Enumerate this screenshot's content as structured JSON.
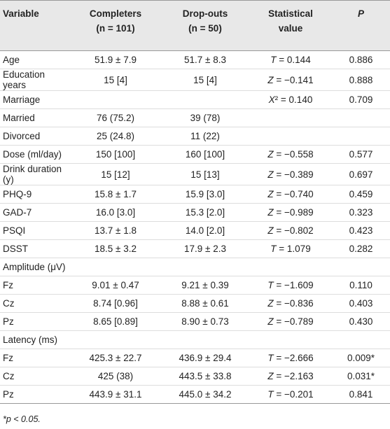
{
  "table": {
    "header": [
      "Variable",
      [
        "Completers",
        "(n = 101)"
      ],
      [
        "Drop-outs",
        "(n = 50)"
      ],
      [
        "Statistical",
        "value"
      ],
      "P"
    ],
    "rows": [
      [
        "Age",
        "51.9 ± 7.9",
        "51.7 ± 8.3",
        "T = 0.144",
        "0.886"
      ],
      [
        "Education years",
        "15 [4]",
        "15 [4]",
        "Z = −0.141",
        "0.888"
      ],
      [
        "Marriage",
        null,
        null,
        "X² = 0.140",
        "0.709"
      ],
      [
        "Married",
        "76 (75.2)",
        "39 (78)",
        null,
        null
      ],
      [
        "Divorced",
        "25 (24.8)",
        "11 (22)",
        null,
        null
      ],
      [
        "Dose (ml/day)",
        "150 [100]",
        "160 [100]",
        "Z = −0.558",
        "0.577"
      ],
      [
        "Drink duration (y)",
        "15 [12]",
        "15 [13]",
        "Z = −0.389",
        "0.697"
      ],
      [
        "PHQ-9",
        "15.8 ± 1.7",
        "15.9 [3.0]",
        "Z = −0.740",
        "0.459"
      ],
      [
        "GAD-7",
        "16.0 [3.0]",
        "15.3 [2.0]",
        "Z = −0.989",
        "0.323"
      ],
      [
        "PSQI",
        "13.7 ± 1.8",
        "14.0 [2.0]",
        "Z = −0.802",
        "0.423"
      ],
      [
        "DSST",
        "18.5 ± 3.2",
        "17.9 ± 2.3",
        "T = 1.079",
        "0.282"
      ],
      [
        "Amplitude (μV)",
        null,
        null,
        null,
        null
      ],
      [
        "Fz",
        "9.01 ± 0.47",
        "9.21 ± 0.39",
        "T = −1.609",
        "0.110"
      ],
      [
        "Cz",
        "8.74 [0.96]",
        "8.88 ± 0.61",
        "Z = −0.836",
        "0.403"
      ],
      [
        "Pz",
        "8.65 [0.89]",
        "8.90 ± 0.73",
        "Z = −0.789",
        "0.430"
      ],
      [
        "Latency (ms)",
        null,
        null,
        null,
        null
      ],
      [
        "Fz",
        "425.3 ± 22.7",
        "436.9 ± 29.4",
        "T = −2.666",
        "0.009*"
      ],
      [
        "Cz",
        "425 (38)",
        "443.5 ± 33.8",
        "Z = −2.163",
        "0.031*"
      ],
      [
        "Pz",
        "443.9 ± 31.1",
        "445.0 ± 34.2",
        "T = −0.201",
        "0.841"
      ]
    ]
  },
  "footnote": "*p < 0.05."
}
